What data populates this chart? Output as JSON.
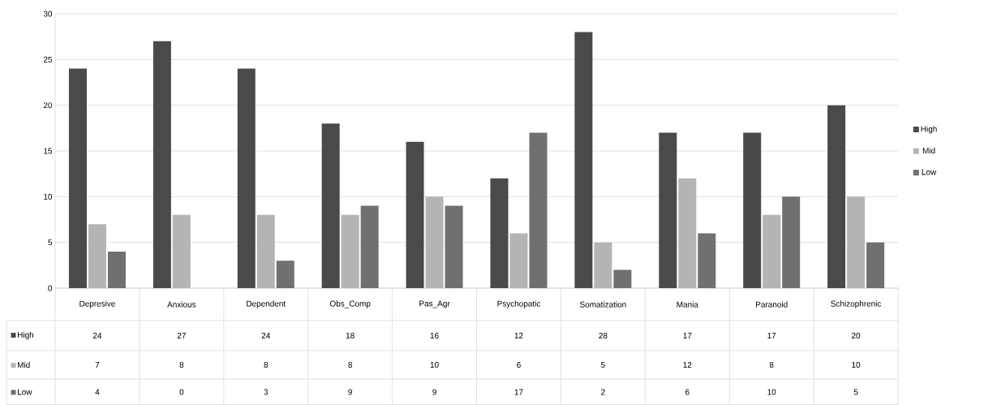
{
  "chart_data": {
    "type": "bar",
    "categories": [
      "Depresive",
      "Anxious",
      "Dependent",
      "Obs_Comp",
      "Pas_Agr",
      "Psychopatic",
      "Somatization",
      "Mania",
      "Paranoid",
      "Schizophrenic"
    ],
    "series": [
      {
        "name": "High",
        "color": "#4a4a4a",
        "values": [
          24,
          27,
          24,
          18,
          16,
          12,
          28,
          17,
          17,
          20
        ]
      },
      {
        "name": "Mid",
        "color": "#b4b4b4",
        "values": [
          7,
          8,
          8,
          8,
          10,
          6,
          5,
          12,
          8,
          10
        ]
      },
      {
        "name": "Low",
        "color": "#707070",
        "values": [
          4,
          0,
          3,
          9,
          9,
          17,
          2,
          6,
          10,
          5
        ]
      }
    ],
    "ylim": [
      0,
      30
    ],
    "yticks": [
      0,
      5,
      10,
      15,
      20,
      25,
      30
    ],
    "grid": "y",
    "legend": "right",
    "data_labels": true
  }
}
